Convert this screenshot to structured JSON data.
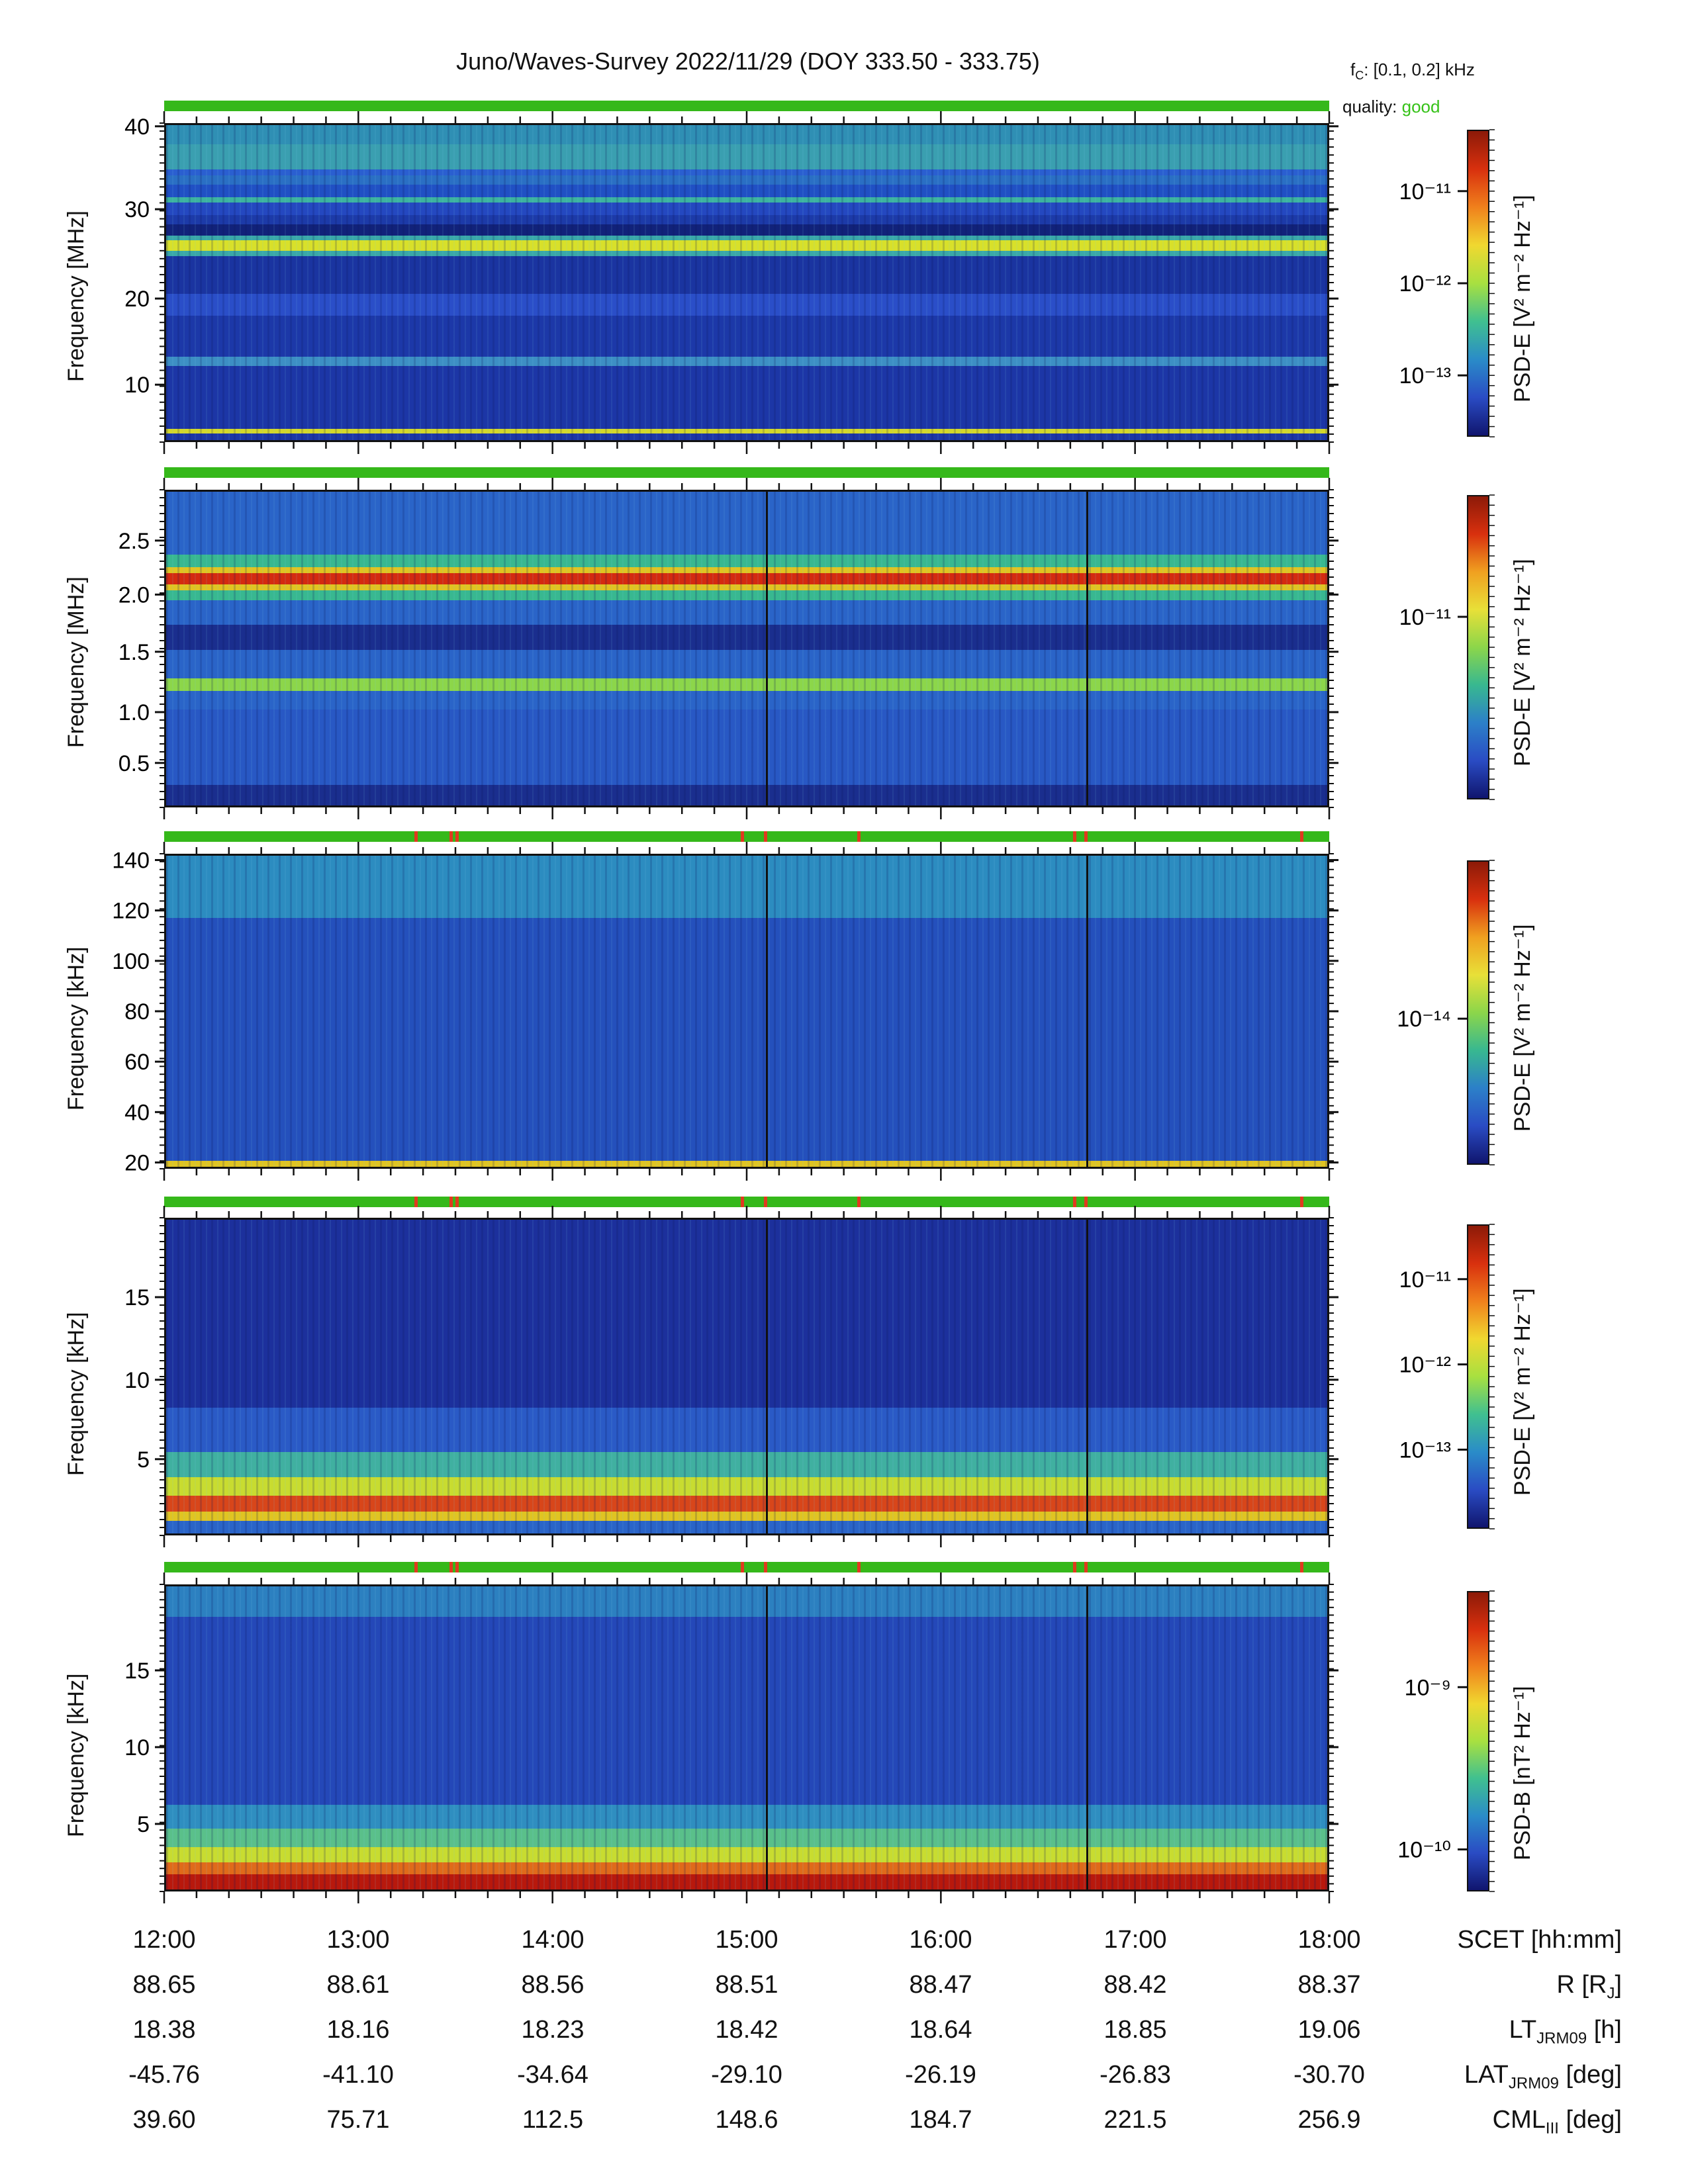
{
  "header": {
    "title": "Juno/Waves-Survey  2022/11/29 (DOY 333.50 - 333.75)",
    "fc_label": "f",
    "fc_sub": "C",
    "fc_value": ": [0.1, 0.2] kHz",
    "quality_label": "quality:",
    "quality_value": "good",
    "quality_color": "#37c21a"
  },
  "chart_data": [
    {
      "type": "heatmap",
      "ylabel": "Frequency [MHz]",
      "yticks": [
        "10",
        "20",
        "30",
        "40"
      ],
      "colorbar_label": "PSD-E [V² m⁻² Hz⁻¹]",
      "colorbar_ticks": [
        "10⁻¹¹",
        "10⁻¹²",
        "10⁻¹³"
      ]
    },
    {
      "type": "heatmap",
      "ylabel": "Frequency [MHz]",
      "yticks": [
        "0.5",
        "1.0",
        "1.5",
        "2.0",
        "2.5"
      ],
      "colorbar_label": "PSD-E [V² m⁻² Hz⁻¹]",
      "colorbar_ticks": [
        "10⁻¹¹"
      ]
    },
    {
      "type": "heatmap",
      "ylabel": "Frequency [kHz]",
      "yticks": [
        "20",
        "40",
        "60",
        "80",
        "100",
        "120",
        "140"
      ],
      "colorbar_label": "PSD-E [V² m⁻² Hz⁻¹]",
      "colorbar_ticks": [
        "10⁻¹⁴"
      ]
    },
    {
      "type": "heatmap",
      "ylabel": "Frequency [kHz]",
      "yticks": [
        "5",
        "10",
        "15"
      ],
      "colorbar_label": "PSD-E [V² m⁻² Hz⁻¹]",
      "colorbar_ticks": [
        "10⁻¹¹",
        "10⁻¹²",
        "10⁻¹³"
      ]
    },
    {
      "type": "heatmap",
      "ylabel": "Frequency [kHz]",
      "yticks": [
        "5",
        "10",
        "15"
      ],
      "colorbar_label": "PSD-B [nT² Hz⁻¹]",
      "colorbar_ticks": [
        "10⁻⁹",
        "10⁻¹⁰"
      ]
    }
  ],
  "x_axis": {
    "ticks": [
      "12:00",
      "13:00",
      "14:00",
      "15:00",
      "16:00",
      "17:00",
      "18:00"
    ]
  },
  "ephemeris": {
    "rows": [
      {
        "label": "SCET [hh:mm]",
        "values": [
          "12:00",
          "13:00",
          "14:00",
          "15:00",
          "16:00",
          "17:00",
          "18:00"
        ]
      },
      {
        "label": "R [R",
        "label_sub": "J",
        "label_end": "]",
        "values": [
          "88.65",
          "88.61",
          "88.56",
          "88.51",
          "88.47",
          "88.42",
          "88.37"
        ]
      },
      {
        "label": "LT",
        "label_sub": "JRM09",
        "label_end": " [h]",
        "values": [
          "18.38",
          "18.16",
          "18.23",
          "18.42",
          "18.64",
          "18.85",
          "19.06"
        ]
      },
      {
        "label": "LAT",
        "label_sub": "JRM09",
        "label_end": " [deg]",
        "values": [
          "-45.76",
          "-41.10",
          "-34.64",
          "-29.10",
          "-26.19",
          "-26.83",
          "-30.70"
        ]
      },
      {
        "label": "CML",
        "label_sub": "III",
        "label_end": " [deg]",
        "values": [
          "39.60",
          "75.71",
          "112.5",
          "148.6",
          "184.7",
          "221.5",
          "256.9"
        ]
      }
    ]
  }
}
